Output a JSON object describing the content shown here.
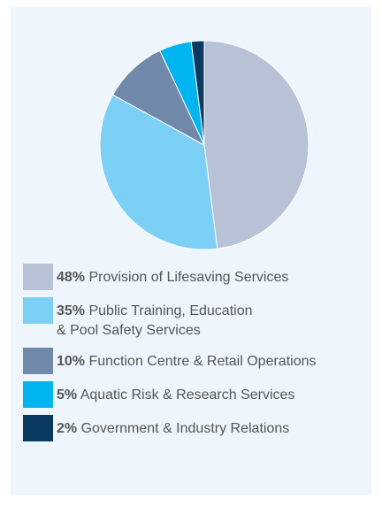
{
  "chart_data": {
    "type": "pie",
    "categories": [
      "Provision of Lifesaving Services",
      "Public Training, Education\n& Pool Safety Services",
      "Function Centre & Retail Operations",
      "Aquatic Risk & Research Services",
      "Government & Industry Relations"
    ],
    "values": [
      48,
      35,
      10,
      5,
      2
    ],
    "value_labels": [
      "48%",
      "35%",
      "10%",
      "5%",
      "2%"
    ],
    "colors": [
      "#b7c2d6",
      "#7dd0f5",
      "#7088aa",
      "#00b5ef",
      "#0a3a60"
    ]
  }
}
